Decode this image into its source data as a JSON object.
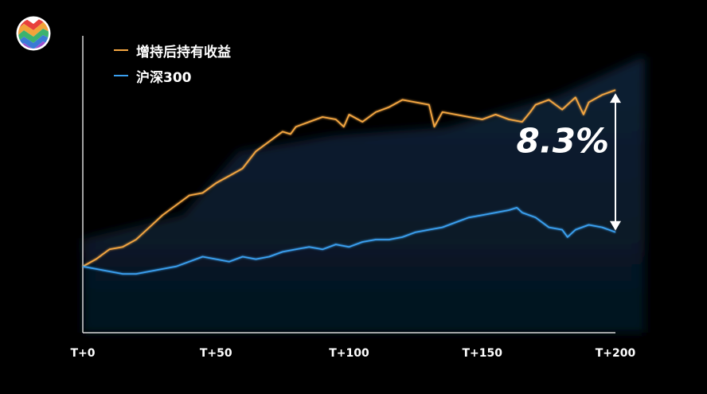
{
  "logo": {
    "colors": [
      "#e8403c",
      "#f2a33a",
      "#3bb36e",
      "#3a7bd5",
      "#9b4fd0"
    ]
  },
  "chart_data": {
    "type": "line",
    "title": "",
    "xlabel": "",
    "ylabel": "",
    "xlim": [
      0,
      200
    ],
    "ylim": [
      0,
      1
    ],
    "x_ticks": [
      0,
      50,
      100,
      150,
      200
    ],
    "x_tick_labels": [
      "T+0",
      "T+50",
      "T+100",
      "T+150",
      "T+200"
    ],
    "legend_position": "top-left",
    "grid": false,
    "series": [
      {
        "name": "增持后持有收益",
        "color": "#f5a742",
        "x": [
          0,
          5,
          10,
          15,
          20,
          25,
          30,
          35,
          40,
          45,
          50,
          55,
          60,
          65,
          70,
          75,
          78,
          80,
          85,
          90,
          95,
          98,
          100,
          105,
          110,
          115,
          120,
          125,
          130,
          132,
          135,
          140,
          145,
          150,
          155,
          160,
          165,
          168,
          170,
          175,
          180,
          185,
          188,
          190,
          195,
          200
        ],
        "values": [
          0.27,
          0.3,
          0.34,
          0.35,
          0.38,
          0.43,
          0.48,
          0.52,
          0.56,
          0.57,
          0.61,
          0.64,
          0.67,
          0.74,
          0.78,
          0.82,
          0.81,
          0.84,
          0.86,
          0.88,
          0.87,
          0.84,
          0.89,
          0.86,
          0.9,
          0.92,
          0.95,
          0.94,
          0.93,
          0.84,
          0.9,
          0.89,
          0.88,
          0.87,
          0.89,
          0.87,
          0.86,
          0.9,
          0.93,
          0.95,
          0.91,
          0.96,
          0.89,
          0.94,
          0.97,
          0.99
        ]
      },
      {
        "name": "沪深300",
        "color": "#3aa0f0",
        "x": [
          0,
          5,
          10,
          15,
          20,
          25,
          30,
          35,
          40,
          45,
          50,
          55,
          60,
          65,
          70,
          75,
          80,
          85,
          90,
          95,
          100,
          105,
          110,
          115,
          120,
          125,
          130,
          135,
          140,
          145,
          150,
          155,
          160,
          163,
          165,
          170,
          175,
          180,
          182,
          185,
          190,
          195,
          200
        ],
        "values": [
          0.27,
          0.26,
          0.25,
          0.24,
          0.24,
          0.25,
          0.26,
          0.27,
          0.29,
          0.31,
          0.3,
          0.29,
          0.31,
          0.3,
          0.31,
          0.33,
          0.34,
          0.35,
          0.34,
          0.36,
          0.35,
          0.37,
          0.38,
          0.38,
          0.39,
          0.41,
          0.42,
          0.43,
          0.45,
          0.47,
          0.48,
          0.49,
          0.5,
          0.51,
          0.49,
          0.47,
          0.43,
          0.42,
          0.39,
          0.42,
          0.44,
          0.43,
          0.41
        ]
      }
    ],
    "annotation": {
      "text": "8.3%",
      "x": 200
    }
  }
}
